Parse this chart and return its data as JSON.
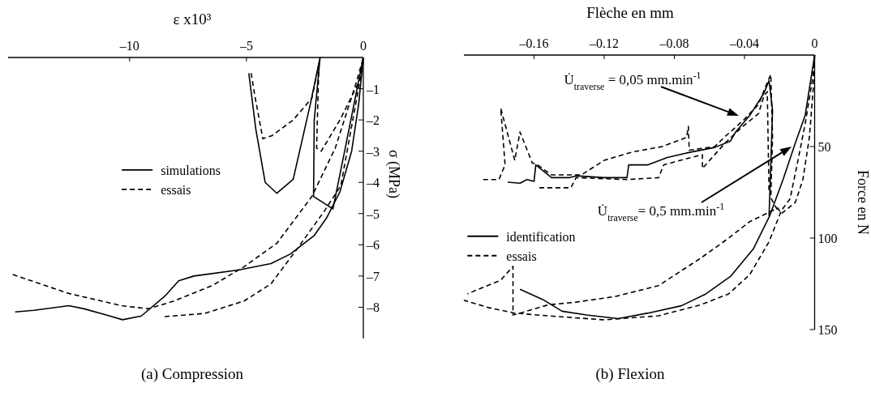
{
  "chart_data": [
    {
      "type": "line",
      "xlabel": "ε x10³",
      "ylabel": "σ (MPa)",
      "xlim": [
        -15.2,
        0
      ],
      "ylim": [
        -9,
        0
      ],
      "xticks": [
        {
          "value": -10,
          "label": "–10"
        },
        {
          "value": -5,
          "label": "–5"
        },
        0
      ],
      "yticks": [
        {
          "value": -8,
          "label": "–8"
        },
        {
          "value": -7,
          "label": "–7"
        },
        {
          "value": -6,
          "label": "–6"
        },
        {
          "value": -5,
          "label": "–5"
        },
        {
          "value": -4,
          "label": "–4"
        },
        {
          "value": -3,
          "label": "–3"
        },
        {
          "value": -2,
          "label": "–2"
        },
        {
          "value": -1,
          "label": "–1"
        }
      ],
      "legend": "left",
      "annotations": [
        "(a) Compression"
      ],
      "series": [
        {
          "name": "simulations",
          "color": "#000000",
          "line_style": "solid",
          "x": [
            0,
            -0.2,
            -0.5,
            -1.0,
            -1.58,
            -2.1,
            -3.13,
            -3.95,
            -5.3,
            -7.25,
            -7.9,
            -8.5,
            -9.5,
            -10.3,
            -11.0,
            -11.95,
            -12.6,
            -14.1,
            -14.9
          ],
          "values": [
            0,
            -1.5,
            -3.0,
            -4.3,
            -5.15,
            -5.7,
            -6.3,
            -6.6,
            -6.8,
            -7.0,
            -7.15,
            -7.65,
            -8.28,
            -8.4,
            -8.25,
            -8.05,
            -7.95,
            -8.1,
            -8.15
          ]
        },
        {
          "color": "#000000",
          "line_style": "solid",
          "x": [
            0,
            -0.4,
            -0.8,
            -1.3,
            -2.13,
            -2.1,
            -1.85,
            -2.27,
            -3.0,
            -3.7,
            -4.2,
            -4.6,
            -4.9
          ],
          "values": [
            0,
            -1.5,
            -3.0,
            -4.85,
            -4.45,
            -2.0,
            0,
            -1.5,
            -3.9,
            -4.35,
            -4.0,
            -2.3,
            -0.5
          ]
        },
        {
          "name": "essais",
          "color": "#000000",
          "line_style": "dashed",
          "x": [
            -15.0,
            -12.65,
            -10.35,
            -9.2,
            -8.1,
            -6.45,
            -5.1,
            -3.7,
            -2.2,
            -1.2,
            -0.3,
            0
          ],
          "values": [
            -6.95,
            -7.55,
            -7.95,
            -8.05,
            -7.8,
            -7.3,
            -6.7,
            -5.95,
            -4.45,
            -2.9,
            -0.8,
            0
          ]
        },
        {
          "color": "#000000",
          "line_style": "dashed",
          "x": [
            -8.5,
            -6.8,
            -5.1,
            -3.95,
            -2.8,
            -1.65,
            -0.96,
            -0.5,
            0
          ],
          "values": [
            -8.3,
            -8.2,
            -7.8,
            -7.25,
            -6.1,
            -4.9,
            -4.1,
            -2.2,
            -0.15
          ]
        },
        {
          "color": "#000000",
          "line_style": "dashed",
          "x": [
            -1.9,
            -2.0,
            -1.8,
            -1.0,
            -0.2,
            0
          ],
          "values": [
            -0.2,
            -2.9,
            -3.0,
            -2.0,
            -0.8,
            0
          ]
        },
        {
          "color": "#000000",
          "line_style": "dashed",
          "x": [
            -4.8,
            -4.65,
            -4.3,
            -3.9,
            -3.0,
            -2.2,
            -1.9
          ],
          "values": [
            -0.5,
            -1.2,
            -2.6,
            -2.5,
            -2.0,
            -1.3,
            -0.2
          ]
        }
      ]
    },
    {
      "type": "line",
      "xlabel": "Flèche en mm",
      "ylabel": "Force en N",
      "xlim": [
        -0.2,
        0
      ],
      "ylim": [
        150,
        0
      ],
      "xticks": [
        {
          "value": -0.16,
          "label": "–0.16"
        },
        {
          "value": -0.12,
          "label": "–0.12"
        },
        {
          "value": -0.08,
          "label": "–0.08"
        },
        {
          "value": -0.04,
          "label": "–0.04"
        },
        0
      ],
      "yticks": [
        50,
        100,
        150
      ],
      "legend": "bottom left",
      "annotations": [
        "U̇$_{traverse}$ = 0,05 mm.min$^{-1}$",
        "U̇$_{traverse}$= 0,5 mm.min$^{-1}$",
        "(b) Flexion"
      ],
      "series": [
        {
          "name": "identification",
          "color": "#000000",
          "line_style": "solid",
          "x": [
            0,
            -0.0054,
            -0.011,
            -0.018,
            -0.0257,
            -0.035,
            -0.048,
            -0.062,
            -0.076,
            -0.095,
            -0.112,
            -0.13,
            -0.144,
            -0.155,
            -0.168
          ],
          "values": [
            0,
            33,
            48,
            68,
            88,
            106,
            121,
            130.5,
            137,
            141,
            144,
            142,
            140,
            133.6,
            128
          ]
        },
        {
          "color": "#000000",
          "line_style": "solid",
          "x": [
            -0.175,
            -0.168,
            -0.164,
            -0.16,
            -0.159,
            -0.15,
            -0.14,
            -0.136,
            -0.12,
            -0.107,
            -0.106,
            -0.095,
            -0.084,
            -0.073,
            -0.057,
            -0.048,
            -0.045,
            -0.037,
            -0.029,
            -0.026,
            -0.024,
            -0.025,
            -0.026
          ],
          "values": [
            69.5,
            70,
            68,
            69,
            60,
            67,
            67,
            66,
            67,
            67,
            60,
            60,
            56,
            53.5,
            50.5,
            47,
            42,
            33,
            21,
            14,
            30,
            60,
            88
          ]
        },
        {
          "name": "essais",
          "color": "#000000",
          "line_style": "dashed",
          "x": [
            -0.189,
            -0.18,
            -0.1765,
            -0.179,
            -0.171,
            -0.168,
            -0.161,
            -0.158,
            -0.15,
            -0.133,
            -0.12,
            -0.104,
            -0.087,
            -0.073,
            -0.072,
            -0.0715,
            -0.057,
            -0.051,
            -0.041,
            -0.032,
            -0.027,
            -0.025,
            -0.024,
            -0.025,
            -0.021
          ],
          "values": [
            68,
            68,
            60,
            29,
            57.5,
            42,
            59,
            60,
            65.5,
            65.5,
            57.5,
            53,
            50,
            45,
            39,
            52,
            50,
            44.5,
            36,
            27,
            15,
            10.6,
            45,
            78,
            85
          ]
        },
        {
          "color": "#000000",
          "line_style": "dashed",
          "x": [
            -0.157,
            -0.139,
            -0.136,
            -0.107,
            -0.089,
            -0.086,
            -0.073,
            -0.064,
            -0.064,
            -0.051,
            -0.041,
            -0.032,
            -0.029,
            -0.027,
            -0.026
          ],
          "values": [
            72.5,
            72.5,
            67,
            68,
            67,
            60,
            56.6,
            54.5,
            62,
            48,
            39,
            32,
            22.6,
            20,
            75.5
          ]
        },
        {
          "color": "#000000",
          "line_style": "dashed",
          "x": [
            0,
            -0.001,
            -0.0054,
            -0.01,
            -0.014,
            -0.019,
            -0.026,
            -0.037,
            -0.049,
            -0.065,
            -0.089,
            -0.12,
            -0.152,
            -0.171,
            -0.186,
            -0.2
          ],
          "values": [
            0,
            12,
            37.6,
            60,
            78.5,
            85,
            102,
            120,
            130.5,
            136.5,
            142.5,
            144.7,
            142.5,
            141,
            138,
            134
          ]
        },
        {
          "color": "#000000",
          "line_style": "dashed",
          "x": [
            0,
            -0.0005,
            -0.003,
            -0.0067,
            -0.011,
            -0.019,
            -0.021,
            -0.037,
            -0.049,
            -0.065,
            -0.089,
            -0.114,
            -0.136,
            -0.152,
            -0.168,
            -0.172,
            -0.172,
            -0.179,
            -0.198
          ],
          "values": [
            0,
            15,
            45,
            68,
            80.5,
            86.7,
            83.6,
            91,
            100,
            111,
            126,
            132,
            135,
            136.5,
            141,
            142,
            115.5,
            123,
            130.5
          ]
        }
      ]
    }
  ]
}
